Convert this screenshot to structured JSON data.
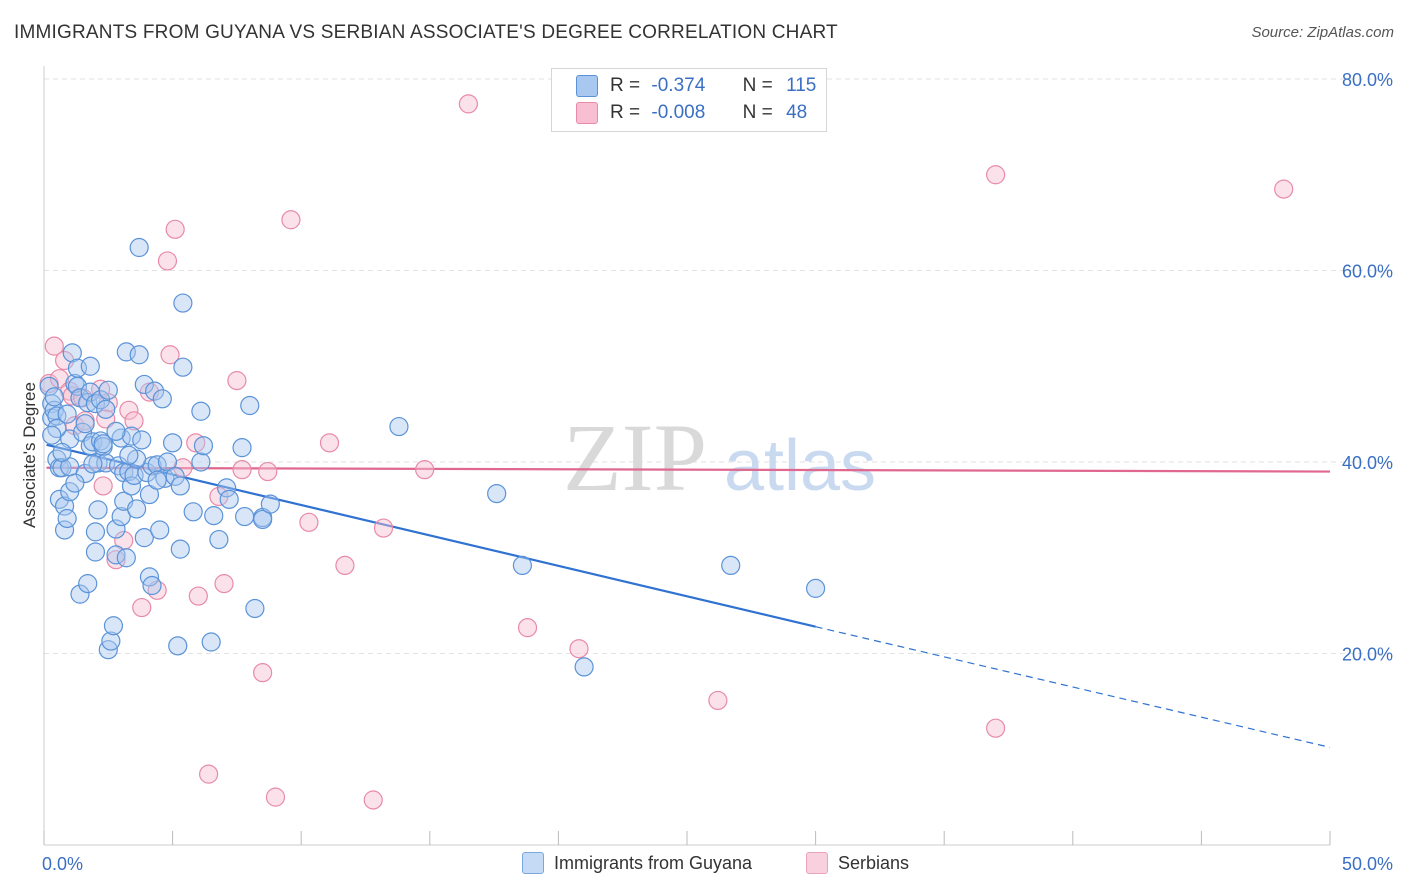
{
  "title": "IMMIGRANTS FROM GUYANA VS SERBIAN ASSOCIATE'S DEGREE CORRELATION CHART",
  "source": "Source: ZipAtlas.com",
  "watermark": {
    "zip": "ZIP",
    "atlas": "atlas"
  },
  "legend_top": {
    "rows": [
      {
        "r_label": "R =",
        "r_value": "-0.374",
        "n_label": "N =",
        "n_value": "115"
      },
      {
        "r_label": "R =",
        "r_value": "-0.008",
        "n_label": "N =",
        "n_value": "48"
      }
    ]
  },
  "legend_bottom": {
    "series1": "Immigrants from Guyana",
    "series2": "Serbians"
  },
  "colors": {
    "blue_fill": "#a9c8f0",
    "blue_stroke": "#5b93d8",
    "blue_line": "#2f72d2",
    "pink_fill": "#f7bfd1",
    "pink_stroke": "#e88aa8",
    "pink_line": "#e0688f",
    "axis_text": "#3a6fc4",
    "grid": "#e2e2e2"
  },
  "chart_data": {
    "type": "scatter",
    "title": "IMMIGRANTS FROM GUYANA VS SERBIAN ASSOCIATE'S DEGREE CORRELATION CHART",
    "xlabel": "",
    "ylabel": "Associate's Degree",
    "xlim": [
      0,
      50
    ],
    "ylim": [
      0,
      80
    ],
    "x_tick_labels": [
      "0.0%",
      "50.0%"
    ],
    "y_ticks": [
      20,
      40,
      60,
      80
    ],
    "y_tick_labels": [
      "20.0%",
      "40.0%",
      "60.0%",
      "80.0%"
    ],
    "series": [
      {
        "name": "Immigrants from Guyana",
        "R": -0.374,
        "N": 115,
        "trend": {
          "x0": 0.1,
          "y0": 41.8,
          "x1": 30.0,
          "y1": 22.8,
          "dash_to_x": 50.0,
          "dash_to_y": 10.2
        },
        "points": [
          [
            0.2,
            47.9
          ],
          [
            0.3,
            46.1
          ],
          [
            0.3,
            44.6
          ],
          [
            0.4,
            45.4
          ],
          [
            0.5,
            44.8
          ],
          [
            0.5,
            40.3
          ],
          [
            0.6,
            39.4
          ],
          [
            0.6,
            36.1
          ],
          [
            0.7,
            39.4
          ],
          [
            0.8,
            35.4
          ],
          [
            0.8,
            32.9
          ],
          [
            0.9,
            34.1
          ],
          [
            1.0,
            39.5
          ],
          [
            1.0,
            36.9
          ],
          [
            1.0,
            42.4
          ],
          [
            1.1,
            51.4
          ],
          [
            1.2,
            48.2
          ],
          [
            1.3,
            49.8
          ],
          [
            1.3,
            47.9
          ],
          [
            1.4,
            46.7
          ],
          [
            1.4,
            26.2
          ],
          [
            1.5,
            43.1
          ],
          [
            1.6,
            38.8
          ],
          [
            1.7,
            27.3
          ],
          [
            1.7,
            46.2
          ],
          [
            1.8,
            50.0
          ],
          [
            1.8,
            41.7
          ],
          [
            1.8,
            47.3
          ],
          [
            1.9,
            42.1
          ],
          [
            2.0,
            46.1
          ],
          [
            2.0,
            32.7
          ],
          [
            2.0,
            30.6
          ],
          [
            2.1,
            39.9
          ],
          [
            2.2,
            42.2
          ],
          [
            2.2,
            46.5
          ],
          [
            2.3,
            41.6
          ],
          [
            2.4,
            45.5
          ],
          [
            2.4,
            39.9
          ],
          [
            2.5,
            47.5
          ],
          [
            2.5,
            20.4
          ],
          [
            2.6,
            21.3
          ],
          [
            2.7,
            22.9
          ],
          [
            2.8,
            30.3
          ],
          [
            2.8,
            33.0
          ],
          [
            2.9,
            39.6
          ],
          [
            3.0,
            34.3
          ],
          [
            3.0,
            42.5
          ],
          [
            3.1,
            35.9
          ],
          [
            3.1,
            38.9
          ],
          [
            3.2,
            30.0
          ],
          [
            3.2,
            51.5
          ],
          [
            3.3,
            39.0
          ],
          [
            3.4,
            42.7
          ],
          [
            3.4,
            37.5
          ],
          [
            3.5,
            38.6
          ],
          [
            3.6,
            35.1
          ],
          [
            3.7,
            51.2
          ],
          [
            3.7,
            62.4
          ],
          [
            3.8,
            42.3
          ],
          [
            3.9,
            48.1
          ],
          [
            3.9,
            32.1
          ],
          [
            4.0,
            38.9
          ],
          [
            4.1,
            36.6
          ],
          [
            4.1,
            28.0
          ],
          [
            4.2,
            39.6
          ],
          [
            4.2,
            27.1
          ],
          [
            4.3,
            47.4
          ],
          [
            4.4,
            39.7
          ],
          [
            4.5,
            32.9
          ],
          [
            4.6,
            46.6
          ],
          [
            4.7,
            38.3
          ],
          [
            4.8,
            40.0
          ],
          [
            5.0,
            42.0
          ],
          [
            5.1,
            38.5
          ],
          [
            5.2,
            20.8
          ],
          [
            5.3,
            37.5
          ],
          [
            5.3,
            30.9
          ],
          [
            5.4,
            56.6
          ],
          [
            5.4,
            49.9
          ],
          [
            5.8,
            34.8
          ],
          [
            6.1,
            45.3
          ],
          [
            6.1,
            40.0
          ],
          [
            6.2,
            41.7
          ],
          [
            6.5,
            21.2
          ],
          [
            6.6,
            34.4
          ],
          [
            6.8,
            31.9
          ],
          [
            7.1,
            37.3
          ],
          [
            7.2,
            36.1
          ],
          [
            7.7,
            41.5
          ],
          [
            7.8,
            34.3
          ],
          [
            8.0,
            45.9
          ],
          [
            8.2,
            24.7
          ],
          [
            8.5,
            34.2
          ],
          [
            8.5,
            34.0
          ],
          [
            8.8,
            35.6
          ],
          [
            13.8,
            43.7
          ],
          [
            17.6,
            36.7
          ],
          [
            18.6,
            29.2
          ],
          [
            21.0,
            18.6
          ],
          [
            26.7,
            29.2
          ],
          [
            30.0,
            26.8
          ],
          [
            0.4,
            46.8
          ],
          [
            0.9,
            45.0
          ],
          [
            1.9,
            39.8
          ],
          [
            2.3,
            41.9
          ],
          [
            3.6,
            40.3
          ],
          [
            4.4,
            38.1
          ],
          [
            0.5,
            43.5
          ],
          [
            1.6,
            44.0
          ],
          [
            2.8,
            43.2
          ],
          [
            3.3,
            40.7
          ],
          [
            0.7,
            41.0
          ],
          [
            1.2,
            37.8
          ],
          [
            2.1,
            35.0
          ],
          [
            0.3,
            42.8
          ]
        ]
      },
      {
        "name": "Serbians",
        "R": -0.008,
        "N": 48,
        "trend": {
          "x0": 0.1,
          "y0": 39.4,
          "x1": 50.0,
          "y1": 39.0
        },
        "points": [
          [
            0.2,
            48.2
          ],
          [
            0.4,
            52.1
          ],
          [
            0.6,
            48.7
          ],
          [
            0.8,
            50.6
          ],
          [
            1.0,
            47.4
          ],
          [
            1.1,
            46.9
          ],
          [
            1.2,
            43.8
          ],
          [
            1.5,
            46.7
          ],
          [
            1.6,
            44.3
          ],
          [
            2.2,
            47.6
          ],
          [
            2.3,
            37.5
          ],
          [
            2.5,
            46.2
          ],
          [
            2.8,
            29.8
          ],
          [
            3.1,
            31.8
          ],
          [
            3.3,
            45.4
          ],
          [
            3.5,
            44.3
          ],
          [
            3.8,
            24.8
          ],
          [
            4.1,
            47.3
          ],
          [
            4.4,
            26.6
          ],
          [
            4.8,
            61.0
          ],
          [
            4.9,
            51.2
          ],
          [
            5.1,
            64.3
          ],
          [
            5.4,
            39.4
          ],
          [
            5.9,
            42.0
          ],
          [
            6.0,
            26.0
          ],
          [
            6.4,
            7.4
          ],
          [
            6.8,
            36.4
          ],
          [
            7.0,
            27.3
          ],
          [
            7.5,
            48.5
          ],
          [
            7.7,
            39.2
          ],
          [
            8.5,
            18.0
          ],
          [
            8.7,
            39.0
          ],
          [
            9.0,
            5.0
          ],
          [
            9.6,
            65.3
          ],
          [
            10.3,
            33.7
          ],
          [
            11.1,
            42.0
          ],
          [
            11.7,
            29.2
          ],
          [
            12.8,
            4.7
          ],
          [
            13.2,
            33.1
          ],
          [
            14.8,
            39.2
          ],
          [
            16.5,
            77.4
          ],
          [
            18.8,
            22.7
          ],
          [
            20.8,
            20.5
          ],
          [
            26.2,
            15.1
          ],
          [
            37.0,
            70.0
          ],
          [
            37.0,
            12.2
          ],
          [
            48.2,
            68.5
          ],
          [
            2.4,
            44.5
          ]
        ]
      }
    ]
  }
}
